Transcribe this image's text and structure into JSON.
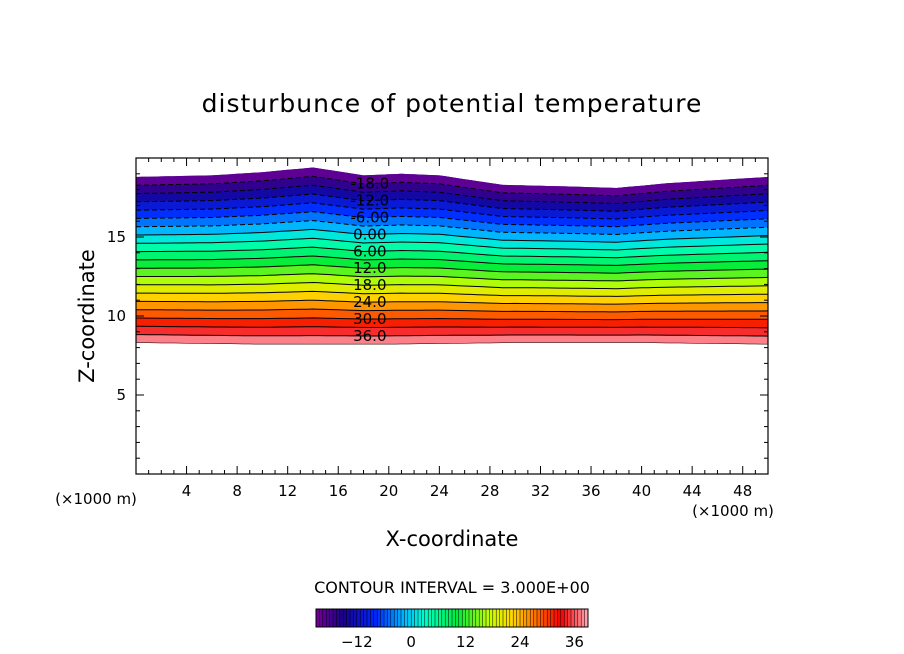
{
  "chart_data": {
    "type": "contour",
    "title": "disturbunce of potential temperature",
    "xlabel": "X-coordinate",
    "ylabel": "Z-coordinate",
    "x_unit": "(×1000 m)",
    "y_unit": "(×1000 m)",
    "xlim": [
      0,
      50
    ],
    "ylim": [
      0,
      20
    ],
    "x_ticks": [
      4,
      8,
      12,
      16,
      20,
      24,
      28,
      32,
      36,
      40,
      44,
      48
    ],
    "y_ticks": [
      5,
      10,
      15
    ],
    "contour_interval_text": "CONTOUR INTERVAL = 3.000E+00",
    "contour_interval": 3,
    "contour_labels": [
      "-18.0",
      "-12.0",
      "-6.00",
      "0.00",
      "6.00",
      "12.0",
      "18.0",
      "24.0",
      "30.0",
      "36.0"
    ],
    "levels": [
      -21,
      -18,
      -15,
      -12,
      -9,
      -6,
      -3,
      0,
      3,
      6,
      9,
      12,
      15,
      18,
      21,
      24,
      27,
      30,
      33,
      36,
      39
    ],
    "negative_contours_dashed": true,
    "field_bottom_z": [
      8.3,
      8.2,
      8.2,
      8.3,
      8.3,
      8.2
    ],
    "field_bottom_x": [
      0,
      10,
      20,
      30,
      40,
      50
    ],
    "top_boundary": {
      "x": [
        0,
        6,
        10,
        14,
        18,
        21,
        24,
        29,
        34,
        38,
        42,
        46,
        50
      ],
      "z": [
        18.8,
        18.9,
        19.1,
        19.4,
        18.9,
        19.0,
        18.9,
        18.3,
        18.2,
        18.1,
        18.4,
        18.6,
        18.8
      ]
    },
    "colorbar": {
      "ticks": [
        -12,
        0,
        12,
        24,
        36
      ],
      "range": [
        -21,
        39
      ]
    }
  }
}
